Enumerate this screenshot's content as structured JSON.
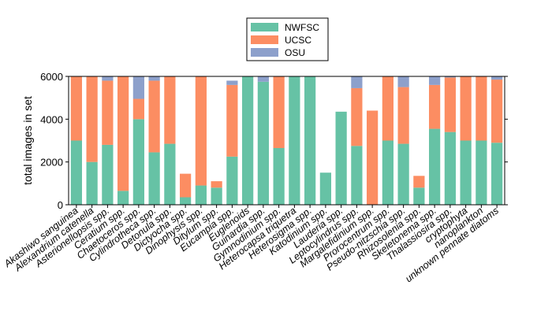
{
  "chart_data": {
    "type": "bar",
    "stacked": true,
    "ylabel": "total images in set",
    "ylim": [
      0,
      6000
    ],
    "yticks": [
      0,
      2000,
      4000,
      6000
    ],
    "legend_position": "top-center",
    "categories": [
      "Akashiwo sanguinea",
      "Alexandrium catenella",
      "Asterionellopsis spp.",
      "Ceratium spp.",
      "Chaetoceros spp.",
      "Cylindrotheca spp.",
      "Detonula spp.",
      "Dictyocha spp.",
      "Dinophysis spp.",
      "Ditylum spp.",
      "Eucampia spp.",
      "Euglenoids",
      "Guinardia spp.",
      "Gymnodinium spp.",
      "Heterocapsa triquetra",
      "Heterosigma spp.",
      "Katodinium spp.",
      "Lauderia spp.",
      "Leptocylindrus spp.",
      "Margalefidinium spp.",
      "Prorocentrum spp.",
      "Pseudo-nitzschia spp.",
      "Rhizosolenia spp.",
      "Skeletonema spp.",
      "Thalassiosira spp.",
      "cryptophyta",
      "nanoplankton",
      "unknown pennate diatoms"
    ],
    "italic_categories": [
      true,
      true,
      true,
      true,
      true,
      true,
      true,
      true,
      true,
      true,
      true,
      false,
      true,
      true,
      true,
      true,
      true,
      true,
      true,
      true,
      true,
      true,
      true,
      true,
      true,
      false,
      false,
      false
    ],
    "series": [
      {
        "name": "NWFSC",
        "color": "#66c2a5",
        "values": [
          3000,
          2000,
          2800,
          650,
          4000,
          2450,
          2850,
          350,
          900,
          800,
          2250,
          6000,
          5750,
          2650,
          6000,
          6000,
          1500,
          4350,
          2750,
          0,
          3000,
          2850,
          800,
          3550,
          3400,
          3000,
          3000,
          2900
        ]
      },
      {
        "name": "UCSC",
        "color": "#fc8d62",
        "values": [
          3000,
          4000,
          3000,
          5350,
          950,
          3350,
          3150,
          1100,
          5100,
          300,
          3350,
          0,
          0,
          3350,
          0,
          0,
          0,
          0,
          2700,
          4400,
          3000,
          2650,
          550,
          2050,
          2550,
          3000,
          3000,
          2950
        ]
      },
      {
        "name": "OSU",
        "color": "#8da0cb",
        "values": [
          0,
          0,
          200,
          0,
          1050,
          200,
          0,
          0,
          0,
          0,
          200,
          0,
          250,
          0,
          0,
          0,
          0,
          0,
          550,
          0,
          0,
          500,
          0,
          400,
          50,
          0,
          0,
          150
        ]
      }
    ]
  }
}
